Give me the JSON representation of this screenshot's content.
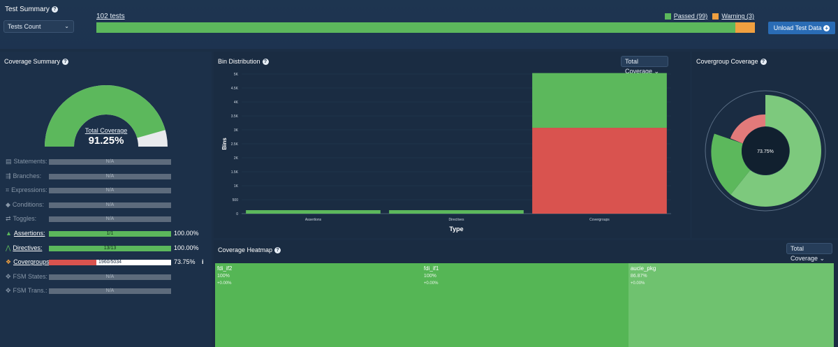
{
  "test_summary": {
    "title": "Test Summary",
    "select_value": "Tests Count",
    "tests_count": "102 tests",
    "passed_label": "Passed (99)",
    "warning_label": "Warning (3)",
    "passed_count": 99,
    "warning_count": 3,
    "unload_label": "Unload Test Data",
    "colors": {
      "passed": "#5cb85c",
      "warning": "#f0a040"
    }
  },
  "coverage_summary": {
    "title": "Coverage Summary",
    "gauge_label": "Total Coverage",
    "gauge_value": "91.25%",
    "gauge_fraction": 0.9125,
    "rows": [
      {
        "label": "Statements:",
        "value": "N/A",
        "pct": "",
        "active": false,
        "fraction": 0,
        "color": "#5d6b7c"
      },
      {
        "label": "Branches:",
        "value": "N/A",
        "pct": "",
        "active": false,
        "fraction": 0,
        "color": "#5d6b7c"
      },
      {
        "label": "Expressions:",
        "value": "N/A",
        "pct": "",
        "active": false,
        "fraction": 0,
        "color": "#5d6b7c"
      },
      {
        "label": "Conditions:",
        "value": "N/A",
        "pct": "",
        "active": false,
        "fraction": 0,
        "color": "#5d6b7c"
      },
      {
        "label": "Toggles:",
        "value": "N/A",
        "pct": "",
        "active": false,
        "fraction": 0,
        "color": "#5d6b7c"
      },
      {
        "label": "Assertions:",
        "value": "1/1",
        "pct": "100.00%",
        "active": true,
        "fraction": 1,
        "color": "#5cb85c"
      },
      {
        "label": "Directives:",
        "value": "13/13",
        "pct": "100.00%",
        "active": true,
        "fraction": 1,
        "color": "#5cb85c"
      },
      {
        "label": "Covergroups:",
        "value": "1960/5034",
        "pct": "73.75%",
        "active": true,
        "fraction": 0.389,
        "color": "#d9534f"
      },
      {
        "label": "FSM States:",
        "value": "N/A",
        "pct": "",
        "active": false,
        "fraction": 0,
        "color": "#5d6b7c"
      },
      {
        "label": "FSM Trans.:",
        "value": "N/A",
        "pct": "",
        "active": false,
        "fraction": 0,
        "color": "#5d6b7c"
      }
    ]
  },
  "bin_distribution": {
    "title": "Bin Distribution",
    "select_value": "Total Coverage"
  },
  "chart_data": {
    "type": "bar",
    "categories": [
      "Assertions",
      "Directives",
      "Covergroups"
    ],
    "series": [
      {
        "name": "",
        "color": "#d9534f",
        "values": [
          0,
          0,
          3074
        ]
      },
      {
        "name": "",
        "color": "#5cb85c",
        "values": [
          1,
          13,
          1960
        ]
      }
    ],
    "xlabel": "Type",
    "ylabel": "Bins",
    "ylim": [
      0,
      5000
    ],
    "yticks": [
      "0",
      "500",
      "1K",
      "1.5K",
      "2K",
      "2.5K",
      "3K",
      "3.5K",
      "4K",
      "4.5K",
      "5K"
    ]
  },
  "covergroup_coverage": {
    "title": "Covergroup Coverage",
    "center_value": "73.75%"
  },
  "heatmap": {
    "title": "Coverage Heatmap",
    "select_value": "Total Coverage",
    "cells": [
      {
        "name": "fdi_if2",
        "pct": "100%",
        "delta": "+0.00%",
        "color": "#55b655",
        "fraction": 0.334
      },
      {
        "name": "fdi_if1",
        "pct": "100%",
        "delta": "+0.00%",
        "color": "#55b655",
        "fraction": 0.334
      },
      {
        "name": "aucie_pkg",
        "pct": "86.87%",
        "delta": "+0.00%",
        "color": "#6fc26f",
        "fraction": 0.332
      }
    ]
  }
}
